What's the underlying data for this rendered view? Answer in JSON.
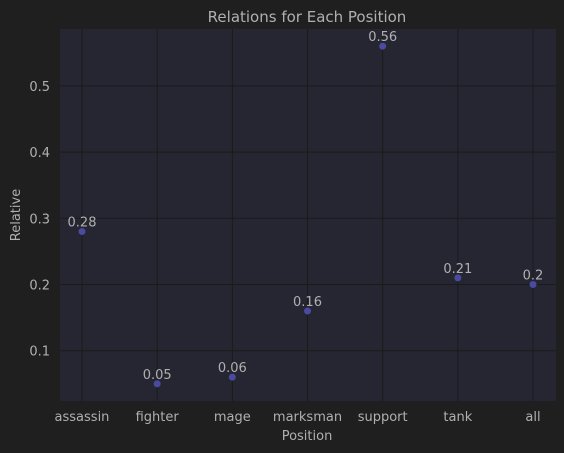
{
  "chart_data": {
    "type": "scatter",
    "title": "Relations for Each Position",
    "xlabel": "Position",
    "ylabel": "Relative",
    "categories": [
      "assassin",
      "fighter",
      "mage",
      "marksman",
      "support",
      "tank",
      "all"
    ],
    "values": [
      0.28,
      0.05,
      0.06,
      0.16,
      0.56,
      0.21,
      0.2
    ],
    "data_labels": [
      "0.28",
      "0.05",
      "0.06",
      "0.16",
      "0.56",
      "0.21",
      "0.2"
    ],
    "yticks": [
      0.1,
      0.2,
      0.3,
      0.4,
      0.5
    ],
    "ylim": [
      0.024,
      0.586
    ],
    "grid": true,
    "colors": {
      "figure_bg": "#1f1f1f",
      "plot_bg": "#262633",
      "grid": "#1a1a1a",
      "marker": "#4a4aa0",
      "text": "#b0b0b0"
    }
  }
}
